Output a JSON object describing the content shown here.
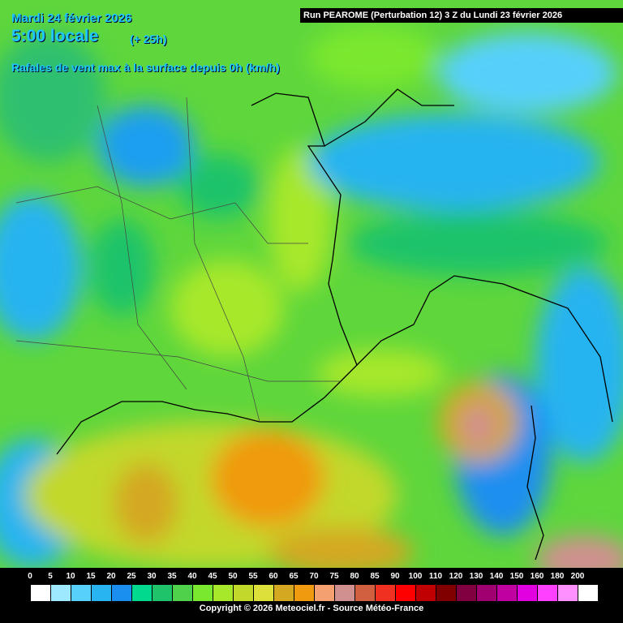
{
  "header": {
    "date": "Mardi 24 février 2026",
    "time": "5:00 locale",
    "lead": "(+ 25h)",
    "parameter": "Rafales de vent max à la surface depuis 0h (km/h)",
    "run": "Run PEAROME (Perturbation 12) 3 Z du Lundi 23 février 2026"
  },
  "legend": {
    "items": [
      {
        "value": 0,
        "color": "#ffffff"
      },
      {
        "value": 5,
        "color": "#9fe9ff"
      },
      {
        "value": 10,
        "color": "#57d0fb"
      },
      {
        "value": 15,
        "color": "#27b4f0"
      },
      {
        "value": 20,
        "color": "#1b8ff0"
      },
      {
        "value": 25,
        "color": "#00d98e"
      },
      {
        "value": 30,
        "color": "#1fc36a"
      },
      {
        "value": 35,
        "color": "#4fd14b"
      },
      {
        "value": 40,
        "color": "#7ae82e"
      },
      {
        "value": 45,
        "color": "#a7e82a"
      },
      {
        "value": 50,
        "color": "#c2d82a"
      },
      {
        "value": 55,
        "color": "#dde03a"
      },
      {
        "value": 60,
        "color": "#d4a820"
      },
      {
        "value": 65,
        "color": "#f09a10"
      },
      {
        "value": 70,
        "color": "#f4a070"
      },
      {
        "value": 75,
        "color": "#d09090"
      },
      {
        "value": 80,
        "color": "#d06040"
      },
      {
        "value": 85,
        "color": "#f03020"
      },
      {
        "value": 90,
        "color": "#ff0000"
      },
      {
        "value": 100,
        "color": "#c00000"
      },
      {
        "value": 110,
        "color": "#800000"
      },
      {
        "value": 120,
        "color": "#800040"
      },
      {
        "value": 130,
        "color": "#a00070"
      },
      {
        "value": 140,
        "color": "#c000a0"
      },
      {
        "value": 150,
        "color": "#e000e0"
      },
      {
        "value": 160,
        "color": "#ff40ff"
      },
      {
        "value": 180,
        "color": "#ff90ff"
      },
      {
        "value": 200,
        "color": "#ffffff"
      }
    ]
  },
  "footer": {
    "copyright": "Copyright © 2026 Meteociel.fr - Source Météo-France"
  }
}
